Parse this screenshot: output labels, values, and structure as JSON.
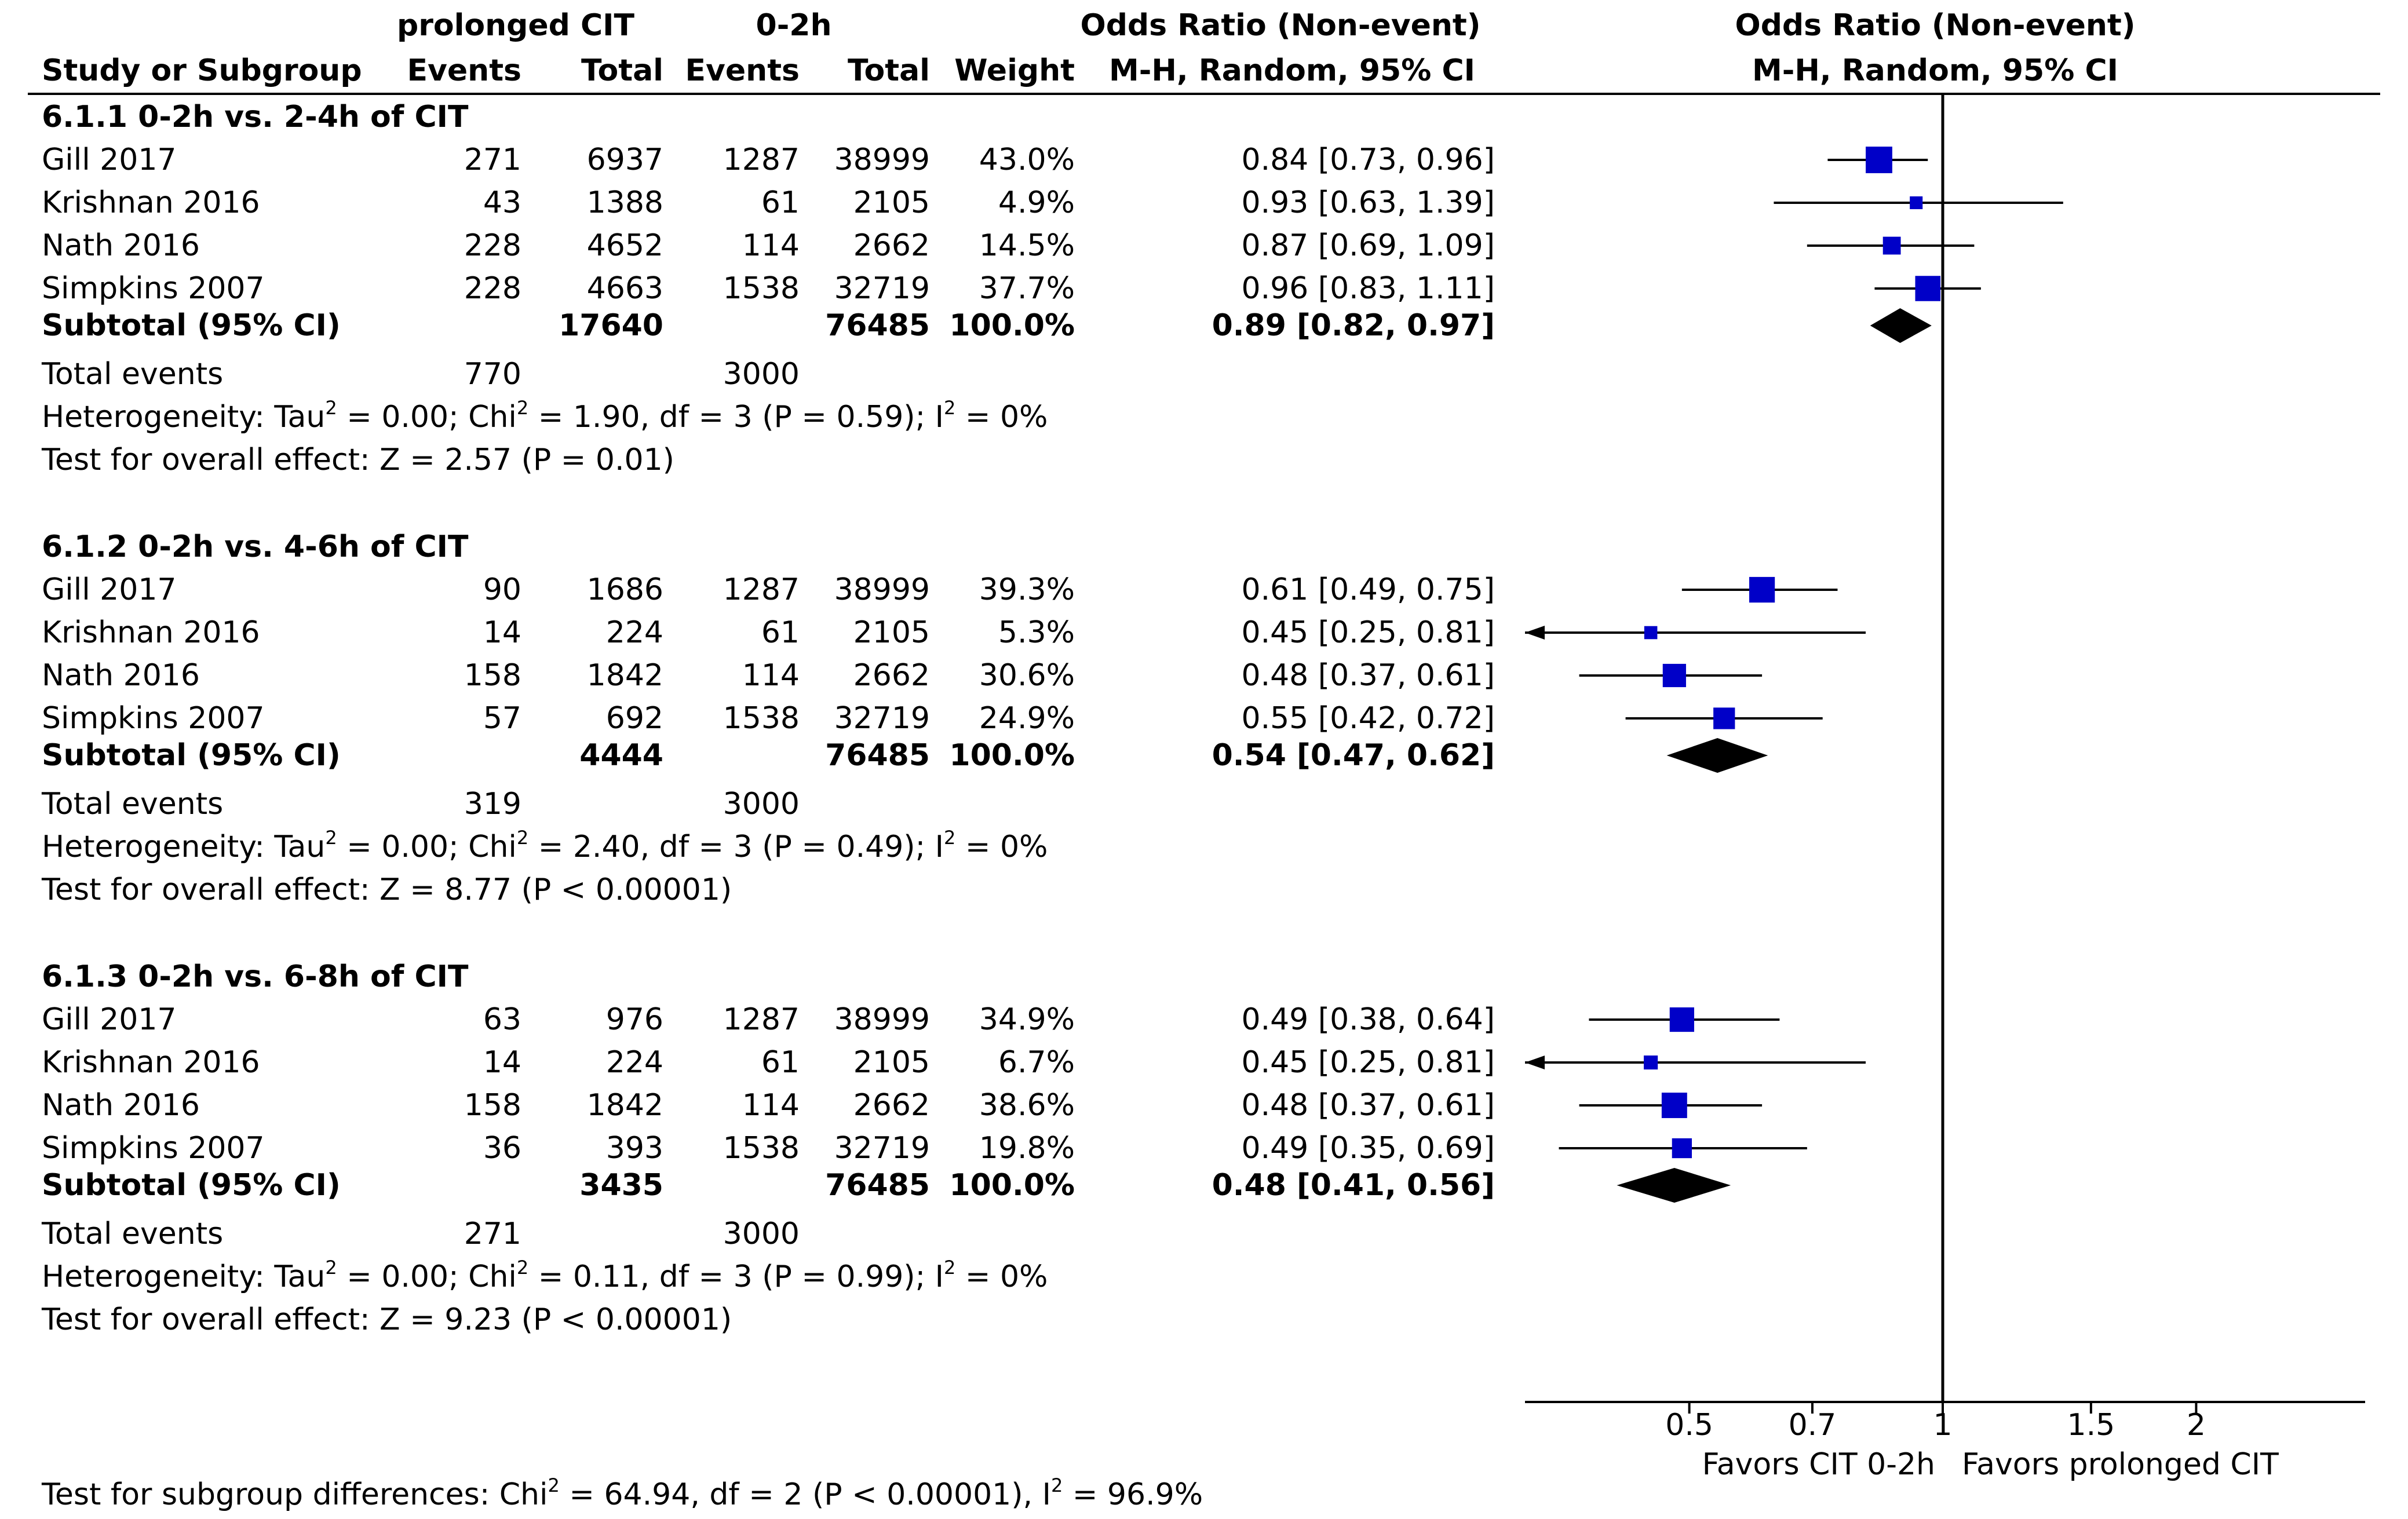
{
  "headers": {
    "exp_group": "prolonged CIT",
    "ctrl_group": "0-2h",
    "or_col_title": "Odds Ratio (Non-event)",
    "or_col_method": "M-H, Random, 95% CI",
    "plot_title": "Odds Ratio (Non-event)",
    "plot_method": "M-H, Random, 95% CI",
    "study": "Study or Subgroup",
    "events": "Events",
    "total": "Total",
    "weight": "Weight"
  },
  "total_events_label": "Total events",
  "subgroups": [
    {
      "title": "6.1.1 0-2h vs. 2-4h of CIT",
      "studies": [
        {
          "name": "Gill 2017",
          "exp_events": "271",
          "exp_total": "6937",
          "ctrl_events": "1287",
          "ctrl_total": "38999",
          "weight": "43.0%",
          "ci_text": "0.84 [0.73, 0.96]",
          "or": 0.84,
          "lo": 0.73,
          "hi": 0.96,
          "w": 43.0
        },
        {
          "name": "Krishnan 2016",
          "exp_events": "43",
          "exp_total": "1388",
          "ctrl_events": "61",
          "ctrl_total": "2105",
          "weight": "4.9%",
          "ci_text": "0.93 [0.63, 1.39]",
          "or": 0.93,
          "lo": 0.63,
          "hi": 1.39,
          "w": 4.9
        },
        {
          "name": "Nath 2016",
          "exp_events": "228",
          "exp_total": "4652",
          "ctrl_events": "114",
          "ctrl_total": "2662",
          "weight": "14.5%",
          "ci_text": "0.87 [0.69, 1.09]",
          "or": 0.87,
          "lo": 0.69,
          "hi": 1.09,
          "w": 14.5
        },
        {
          "name": "Simpkins 2007",
          "exp_events": "228",
          "exp_total": "4663",
          "ctrl_events": "1538",
          "ctrl_total": "32719",
          "weight": "37.7%",
          "ci_text": "0.96 [0.83, 1.11]",
          "or": 0.96,
          "lo": 0.83,
          "hi": 1.11,
          "w": 37.7
        }
      ],
      "subtotal": {
        "label": "Subtotal (95% CI)",
        "exp_total": "17640",
        "ctrl_total": "76485",
        "weight": "100.0%",
        "ci_text": "0.89 [0.82, 0.97]",
        "or": 0.89,
        "lo": 0.82,
        "hi": 0.97
      },
      "total_events_exp": "770",
      "total_events_ctrl": "3000",
      "het_pre": "Heterogeneity: Tau",
      "het_mid": " = 0.00; Chi",
      "het_mid2": " = 1.90, df = 3 (P = 0.59); I",
      "het_post": " = 0%",
      "overall": "Test for overall effect: Z = 2.57 (P = 0.01)"
    },
    {
      "title": "6.1.2 0-2h vs. 4-6h of CIT",
      "studies": [
        {
          "name": "Gill  2017",
          "exp_events": "90",
          "exp_total": "1686",
          "ctrl_events": "1287",
          "ctrl_total": "38999",
          "weight": "39.3%",
          "ci_text": "0.61 [0.49, 0.75]",
          "or": 0.61,
          "lo": 0.49,
          "hi": 0.75,
          "w": 39.3
        },
        {
          "name": "Krishnan  2016",
          "exp_events": "14",
          "exp_total": "224",
          "ctrl_events": "61",
          "ctrl_total": "2105",
          "weight": "5.3%",
          "ci_text": "0.45 [0.25, 0.81]",
          "or": 0.45,
          "lo": 0.25,
          "hi": 0.81,
          "w": 5.3
        },
        {
          "name": "Nath  2016",
          "exp_events": "158",
          "exp_total": "1842",
          "ctrl_events": "114",
          "ctrl_total": "2662",
          "weight": "30.6%",
          "ci_text": "0.48 [0.37, 0.61]",
          "or": 0.48,
          "lo": 0.37,
          "hi": 0.61,
          "w": 30.6
        },
        {
          "name": "Simpkins  2007",
          "exp_events": "57",
          "exp_total": "692",
          "ctrl_events": "1538",
          "ctrl_total": "32719",
          "weight": "24.9%",
          "ci_text": "0.55 [0.42, 0.72]",
          "or": 0.55,
          "lo": 0.42,
          "hi": 0.72,
          "w": 24.9
        }
      ],
      "subtotal": {
        "label": "Subtotal (95% CI)",
        "exp_total": "4444",
        "ctrl_total": "76485",
        "weight": "100.0%",
        "ci_text": "0.54 [0.47, 0.62]",
        "or": 0.54,
        "lo": 0.47,
        "hi": 0.62
      },
      "total_events_exp": "319",
      "total_events_ctrl": "3000",
      "het_pre": "Heterogeneity: Tau",
      "het_mid": " = 0.00; Chi",
      "het_mid2": " = 2.40, df = 3 (P = 0.49); I",
      "het_post": " = 0%",
      "overall": "Test for overall effect: Z = 8.77 (P < 0.00001)"
    },
    {
      "title": "6.1.3 0-2h vs. 6-8h of CIT",
      "studies": [
        {
          "name": "Gill  2017",
          "exp_events": "63",
          "exp_total": "976",
          "ctrl_events": "1287",
          "ctrl_total": "38999",
          "weight": "34.9%",
          "ci_text": "0.49 [0.38, 0.64]",
          "or": 0.49,
          "lo": 0.38,
          "hi": 0.64,
          "w": 34.9
        },
        {
          "name": "Krishnan  2016",
          "exp_events": "14",
          "exp_total": "224",
          "ctrl_events": "61",
          "ctrl_total": "2105",
          "weight": "6.7%",
          "ci_text": "0.45 [0.25, 0.81]",
          "or": 0.45,
          "lo": 0.25,
          "hi": 0.81,
          "w": 6.7
        },
        {
          "name": "Nath  2016",
          "exp_events": "158",
          "exp_total": "1842",
          "ctrl_events": "114",
          "ctrl_total": "2662",
          "weight": "38.6%",
          "ci_text": "0.48 [0.37, 0.61]",
          "or": 0.48,
          "lo": 0.37,
          "hi": 0.61,
          "w": 38.6
        },
        {
          "name": "Simpkins  2007",
          "exp_events": "36",
          "exp_total": "393",
          "ctrl_events": "1538",
          "ctrl_total": "32719",
          "weight": "19.8%",
          "ci_text": "0.49 [0.35, 0.69]",
          "or": 0.49,
          "lo": 0.35,
          "hi": 0.69,
          "w": 19.8
        }
      ],
      "subtotal": {
        "label": "Subtotal (95% CI)",
        "exp_total": "3435",
        "ctrl_total": "76485",
        "weight": "100.0%",
        "ci_text": "0.48 [0.41, 0.56]",
        "or": 0.48,
        "lo": 0.41,
        "hi": 0.56
      },
      "total_events_exp": "271",
      "total_events_ctrl": "3000",
      "het_pre": "Heterogeneity: Tau",
      "het_mid": " = 0.00; Chi",
      "het_mid2": " = 0.11, df = 3 (P = 0.99); I",
      "het_post": " = 0%",
      "overall": "Test for overall effect: Z = 9.23 (P < 0.00001)"
    }
  ],
  "subgroup_test_pre": "Test for subgroup differences: Chi",
  "subgroup_test_mid": " = 64.94, df = 2 (P < 0.00001), I",
  "subgroup_test_post": " = 96.9%",
  "sup2": "2",
  "axis": {
    "scale": "log",
    "ticks": [
      0.5,
      0.7,
      1,
      1.5,
      2
    ],
    "tick_labels": [
      "0.5",
      "0.7",
      "1",
      "1.5",
      "2"
    ],
    "favors_left": "Favors CIT 0-2h",
    "favors_right": "Favors prolonged CIT"
  },
  "colors": {
    "marker": "#0000c8",
    "diamond": "#000000",
    "text": "#000000"
  },
  "chart_data": {
    "type": "forest",
    "title": "",
    "xlabel": "",
    "x_scale": "log",
    "null_line": 1,
    "xticks": [
      0.5,
      0.7,
      1,
      1.5,
      2
    ],
    "left_label": "Favors CIT 0-2h",
    "right_label": "Favors prolonged CIT"
  }
}
